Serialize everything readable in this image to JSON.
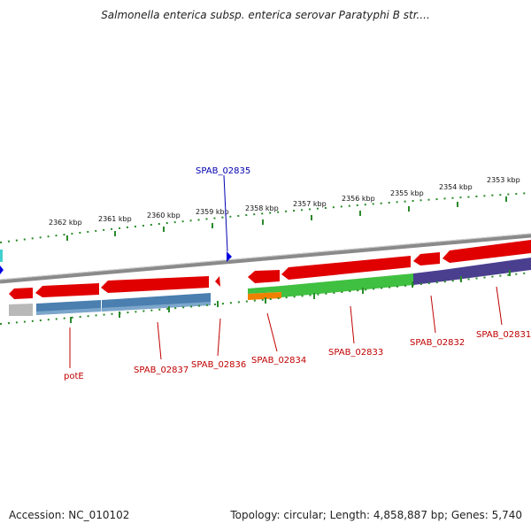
{
  "title": "Salmonella enterica subsp. enterica serovar Paratyphi B str....",
  "footer": {
    "accession": "Accession: NC_010102",
    "summary": "Topology: circular; Length: 4,858,887 bp; Genes: 5,740"
  },
  "ruler_labels": [
    "2362 kbp",
    "2361 kbp",
    "2360 kbp",
    "2359 kbp",
    "2358 kbp",
    "2357 kbp",
    "2356 kbp",
    "2355 kbp",
    "2354 kbp",
    "2353 kbp"
  ],
  "gene_labels": [
    {
      "text": "SPAB_02835",
      "strand": "forward",
      "color": "blue"
    },
    {
      "text": "potE",
      "color": "red"
    },
    {
      "text": "SPAB_02837",
      "color": "red"
    },
    {
      "text": "SPAB_02836",
      "color": "red"
    },
    {
      "text": "SPAB_02834",
      "color": "red"
    },
    {
      "text": "SPAB_02833",
      "color": "red"
    },
    {
      "text": "SPAB_02832",
      "color": "red"
    },
    {
      "text": "SPAB_02831",
      "color": "red"
    }
  ],
  "colors": {
    "backbone": "#8a8a8a",
    "gene_red": "#e00000",
    "gene_green": "#40c040",
    "gene_blue_steel": "#4a7fb0",
    "gene_purple": "#4a3f8f",
    "gene_orange": "#f08000",
    "gene_gray": "#b8b8b8",
    "tick_green": "#2a8a2a",
    "marker_blue": "#0000e0"
  }
}
